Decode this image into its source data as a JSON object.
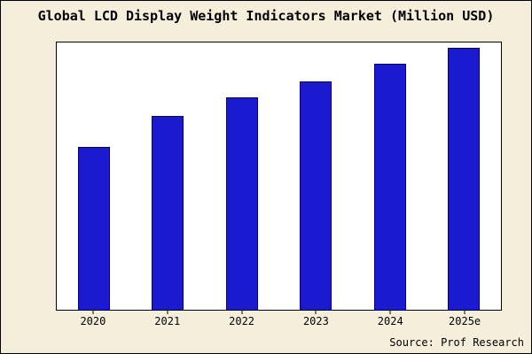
{
  "title": "Global LCD Display Weight Indicators Market (Million USD)",
  "source": "Source: Prof Research",
  "colors": {
    "background": "#f4eeda",
    "plot_background": "#ffffff",
    "bar_fill": "#1b1ad1",
    "bar_border": "#000080",
    "text": "#000000"
  },
  "chart_data": {
    "type": "bar",
    "title": "Global LCD Display Weight Indicators Market (Million USD)",
    "categories": [
      "2020",
      "2021",
      "2022",
      "2023",
      "2024",
      "2025e"
    ],
    "values": [
      62,
      74,
      81,
      87,
      94,
      100
    ],
    "xlabel": "",
    "ylabel": "",
    "ylim": [
      0,
      102
    ],
    "grid": false,
    "legend": false,
    "y_axis_tick_labels": [],
    "annotation": "Source: Prof Research"
  }
}
